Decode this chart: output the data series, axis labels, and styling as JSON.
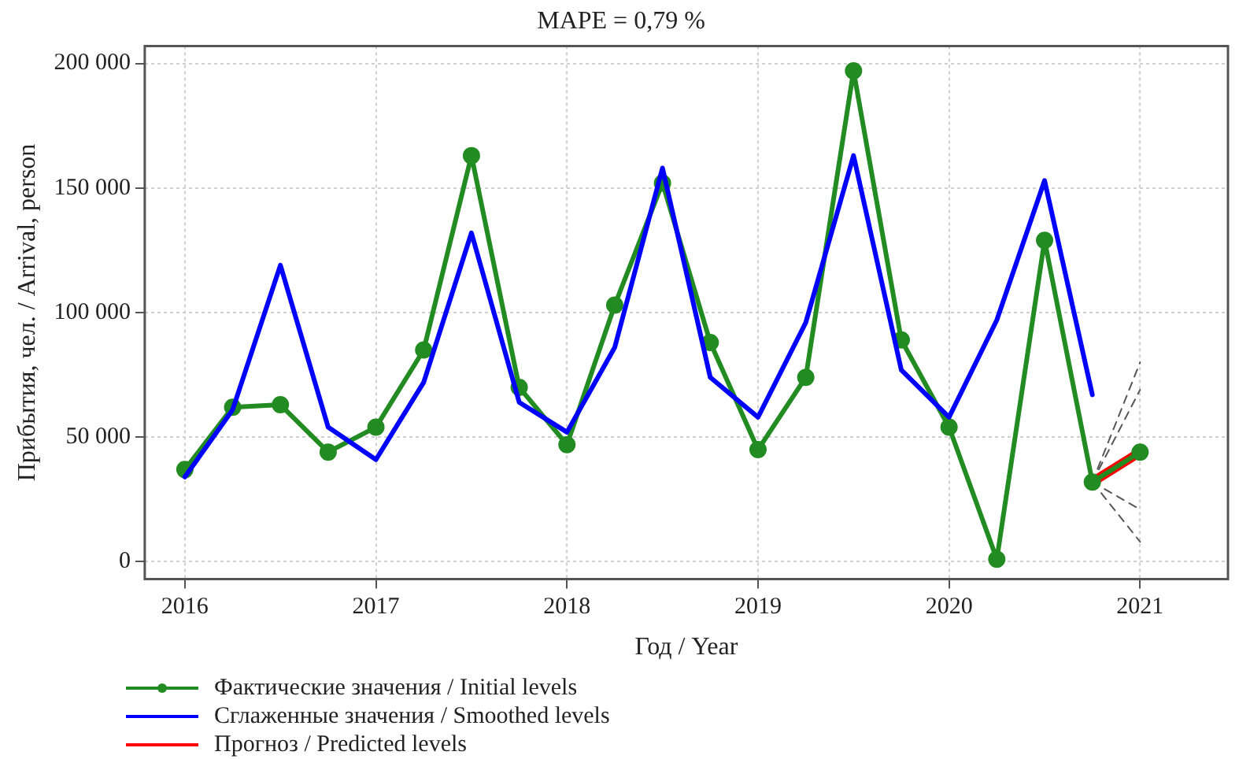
{
  "chart_data": {
    "type": "line",
    "title": "MAPE = 0,79 %",
    "xlabel": "Год / Year",
    "ylabel": "Прибытия, чел. / Arrival, person",
    "xlim": [
      2015.79,
      2021.46
    ],
    "xticks": [
      2016,
      2017,
      2018,
      2019,
      2020,
      2021
    ],
    "ylim": [
      -7000,
      207000
    ],
    "yticks": [
      {
        "value": 0,
        "label": "0"
      },
      {
        "value": 50000,
        "label": "50 000"
      },
      {
        "value": 100000,
        "label": "100 000"
      },
      {
        "value": 150000,
        "label": "150 000"
      },
      {
        "value": 200000,
        "label": "200 000"
      }
    ],
    "grid": true,
    "legend": "bottom left",
    "series": [
      {
        "name": "Фактические значения / Initial levels",
        "color": "#228b22",
        "marker": "circle",
        "line_style": "solid",
        "x": [
          2016,
          2016.25,
          2016.5,
          2016.75,
          2017,
          2017.25,
          2017.5,
          2017.75,
          2018,
          2018.25,
          2018.5,
          2018.75,
          2019,
          2019.25,
          2019.5,
          2019.75,
          2020,
          2020.25,
          2020.5,
          2020.75,
          2021
        ],
        "values": [
          37000,
          62000,
          63000,
          44000,
          54000,
          85000,
          163000,
          70000,
          47000,
          103000,
          152000,
          88000,
          45000,
          74000,
          197000,
          89000,
          54000,
          1000,
          129000,
          32000,
          44000
        ]
      },
      {
        "name": "Сглаженные значения / Smoothed levels",
        "color": "#0000ff",
        "marker": "none",
        "line_style": "solid",
        "x": [
          2016,
          2016.25,
          2016.5,
          2016.75,
          2017,
          2017.25,
          2017.5,
          2017.75,
          2018,
          2018.25,
          2018.5,
          2018.75,
          2019,
          2019.25,
          2019.5,
          2019.75,
          2020,
          2020.25,
          2020.5,
          2020.75
        ],
        "values": [
          34000,
          61000,
          119000,
          54000,
          41000,
          72000,
          132000,
          64000,
          52000,
          86000,
          158000,
          74000,
          58000,
          96000,
          163000,
          77000,
          58000,
          97000,
          153000,
          67000
        ]
      },
      {
        "name": "Прогноз / Predicted levels",
        "color": "#ff0000",
        "marker": "none",
        "line_style": "solid",
        "x": [
          2020.75,
          2021
        ],
        "values": [
          32000,
          44000
        ]
      },
      {
        "color": "#555555",
        "marker": "none",
        "line_style": "dashed",
        "x": [
          2020.75,
          2021
        ],
        "values": [
          32000,
          80000
        ]
      },
      {
        "color": "#555555",
        "marker": "none",
        "line_style": "dashed",
        "x": [
          2020.75,
          2021
        ],
        "values": [
          32000,
          69000
        ]
      },
      {
        "color": "#555555",
        "marker": "none",
        "line_style": "dashed",
        "x": [
          2020.75,
          2021
        ],
        "values": [
          32000,
          21000
        ]
      },
      {
        "color": "#555555",
        "marker": "none",
        "line_style": "dashed",
        "x": [
          2020.75,
          2021
        ],
        "values": [
          32000,
          8000
        ]
      }
    ]
  }
}
